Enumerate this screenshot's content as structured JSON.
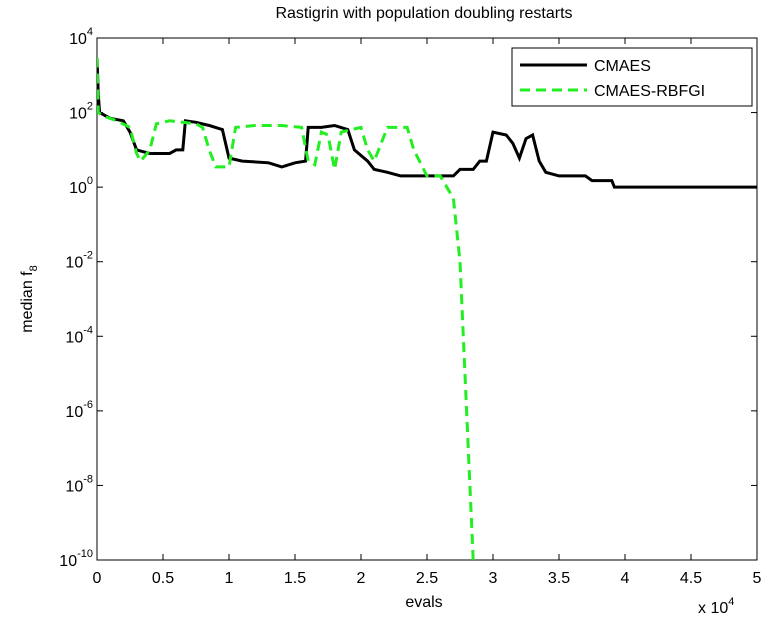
{
  "chart_data": {
    "type": "line",
    "title": "Rastigrin with population doubling restarts",
    "xlabel": "evals",
    "x_multiplier": {
      "label": "x 10",
      "sup": "4"
    },
    "ylabel": "median f",
    "ylabel_sub": "8",
    "ylog": true,
    "xlim": [
      0,
      5
    ],
    "xticks": [
      0,
      0.5,
      1,
      1.5,
      2,
      2.5,
      3,
      3.5,
      4,
      4.5,
      5
    ],
    "ylim": [
      1e-10,
      10000
    ],
    "yticks": [
      {
        "value": 1e-10,
        "label": "10",
        "sup": "-10"
      },
      {
        "value": 1e-08,
        "label": "10",
        "sup": "-8"
      },
      {
        "value": 1e-06,
        "label": "10",
        "sup": "-6"
      },
      {
        "value": 0.0001,
        "label": "10",
        "sup": "-4"
      },
      {
        "value": 0.01,
        "label": "10",
        "sup": "-2"
      },
      {
        "value": 1,
        "label": "10",
        "sup": "0"
      },
      {
        "value": 100,
        "label": "10",
        "sup": "2"
      },
      {
        "value": 10000,
        "label": "10",
        "sup": "4"
      }
    ],
    "legend": "top-right",
    "series": [
      {
        "name": "CMAES",
        "color": "#000000",
        "dash": false,
        "x": [
          0,
          0.01,
          0.02,
          0.1,
          0.2,
          0.25,
          0.3,
          0.4,
          0.55,
          0.6,
          0.65,
          0.67,
          0.75,
          0.85,
          0.95,
          1.0,
          1.1,
          1.3,
          1.4,
          1.5,
          1.58,
          1.6,
          1.7,
          1.8,
          1.9,
          1.95,
          2.05,
          2.1,
          2.2,
          2.3,
          2.5,
          2.7,
          2.75,
          2.85,
          2.9,
          2.95,
          3.0,
          3.1,
          3.15,
          3.2,
          3.25,
          3.3,
          3.35,
          3.4,
          3.5,
          3.7,
          3.75,
          3.9,
          3.92,
          5
        ],
        "values": [
          3000,
          300,
          100,
          70,
          60,
          30,
          10,
          8,
          8,
          10,
          10,
          60,
          55,
          45,
          35,
          6,
          5,
          4.5,
          3.5,
          4.5,
          5,
          40,
          40,
          45,
          35,
          10,
          5,
          3,
          2.5,
          2,
          2,
          2,
          3,
          3,
          5,
          5,
          30,
          25,
          15,
          6,
          20,
          25,
          5,
          2.5,
          2,
          2,
          1.5,
          1.5,
          1,
          1
        ]
      },
      {
        "name": "CMAES-RBFGI",
        "color": "#22ee22",
        "dash": true,
        "x": [
          0,
          0.01,
          0.05,
          0.15,
          0.25,
          0.3,
          0.33,
          0.4,
          0.45,
          0.55,
          0.65,
          0.75,
          0.8,
          0.85,
          0.9,
          1.0,
          1.05,
          1.2,
          1.4,
          1.55,
          1.6,
          1.65,
          1.7,
          1.75,
          1.8,
          1.85,
          2.0,
          2.05,
          2.1,
          2.2,
          2.35,
          2.4,
          2.5,
          2.6,
          2.65,
          2.7,
          2.75,
          2.8,
          2.85
        ],
        "values": [
          3000,
          100,
          80,
          60,
          40,
          8,
          5,
          10,
          50,
          60,
          55,
          50,
          40,
          10,
          3.5,
          3.5,
          40,
          45,
          45,
          40,
          5,
          4,
          30,
          25,
          3,
          30,
          40,
          10,
          5,
          40,
          40,
          10,
          2,
          2,
          1,
          0.5,
          0.01,
          1e-06,
          1e-10
        ]
      }
    ]
  }
}
